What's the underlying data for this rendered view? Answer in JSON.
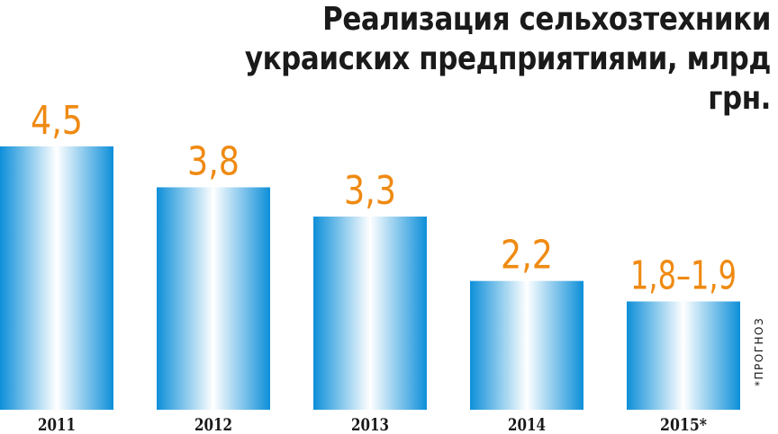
{
  "chart_data": {
    "type": "bar",
    "title_lines": [
      "Реализация сельхозтехники",
      "украиских предприятиями, млрд грн."
    ],
    "categories": [
      "2011",
      "2012",
      "2013",
      "2014",
      "2015*"
    ],
    "values": [
      4.5,
      3.8,
      3.3,
      2.2,
      1.85
    ],
    "value_labels": [
      "4,5",
      "3,8",
      "3,3",
      "2,2",
      "1,8–1,9"
    ],
    "footnote": "*ПРОГНОЗ",
    "ylim": [
      0,
      7.0
    ],
    "grid": false,
    "colors": {
      "bar_edge": "#0d8fd9",
      "bar_center": "#ffffff",
      "value_label": "#ef8a12",
      "text": "#1a1a1a"
    }
  }
}
